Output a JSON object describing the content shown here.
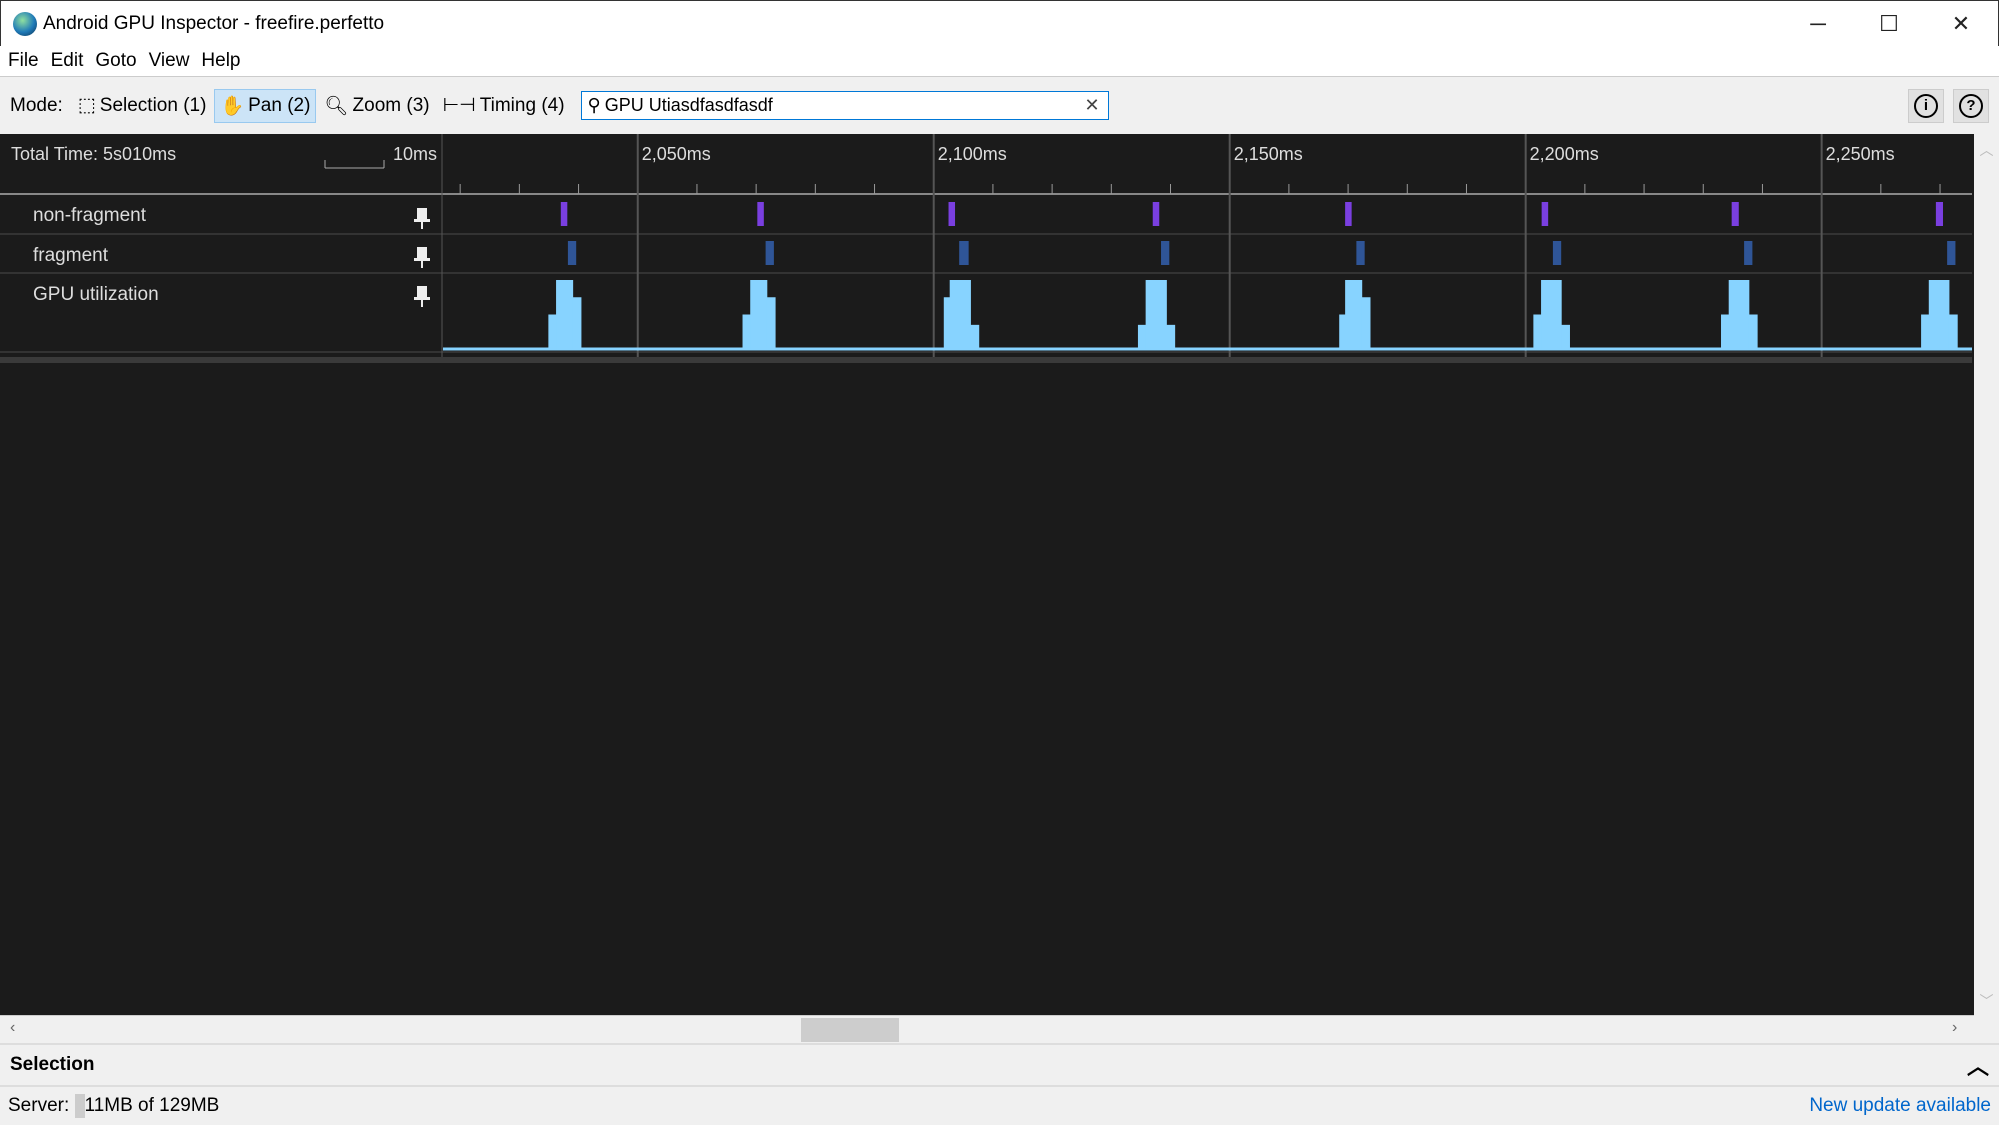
{
  "window": {
    "title": "Android GPU Inspector - freefire.perfetto",
    "minimize": "─",
    "maximize": "☐",
    "close": "✕"
  },
  "menu": [
    "File",
    "Edit",
    "Goto",
    "View",
    "Help"
  ],
  "toolbar": {
    "mode_label": "Mode:",
    "modes": [
      {
        "label": "Selection (1)",
        "icon": "selection-icon",
        "active": false
      },
      {
        "label": "Pan (2)",
        "icon": "hand-icon",
        "active": true
      },
      {
        "label": "Zoom (3)",
        "icon": "zoom-icon",
        "active": false
      },
      {
        "label": "Timing (4)",
        "icon": "timing-icon",
        "active": false
      }
    ],
    "search_value": "GPU Utiasdfasdfasdf",
    "info_icon": "info-icon",
    "help_icon": "help-icon"
  },
  "timeline": {
    "total_time": "Total Time: 5s010ms",
    "scale_label": "10ms",
    "visible_range_ms": [
      2017.1,
      2275.4
    ],
    "major_ticks": [
      {
        "ms": 2050,
        "label": "2,050ms"
      },
      {
        "ms": 2100,
        "label": "2,100ms"
      },
      {
        "ms": 2150,
        "label": "2,150ms"
      },
      {
        "ms": 2200,
        "label": "2,200ms"
      },
      {
        "ms": 2250,
        "label": "2,250ms"
      }
    ],
    "minor_tick_interval_ms": 10,
    "tracks": [
      {
        "label": "non-fragment",
        "color": "#7a3fe0",
        "events_ms": [
          [
            2037.0,
            1.1
          ],
          [
            2070.2,
            1.1
          ],
          [
            2102.5,
            1.1
          ],
          [
            2137.0,
            1.1
          ],
          [
            2169.5,
            1.1
          ],
          [
            2202.7,
            1.1
          ],
          [
            2234.8,
            1.2
          ],
          [
            2269.3,
            1.2
          ]
        ]
      },
      {
        "label": "fragment",
        "color": "#2f5597",
        "events_ms": [
          [
            2038.2,
            1.4
          ],
          [
            2071.6,
            1.4
          ],
          [
            2104.3,
            1.6
          ],
          [
            2138.4,
            1.4
          ],
          [
            2171.4,
            1.4
          ],
          [
            2204.6,
            1.4
          ],
          [
            2236.9,
            1.4
          ],
          [
            2271.2,
            1.4
          ]
        ]
      },
      {
        "label": "GPU utilization",
        "color": "#87d3ff",
        "pulses": [
          {
            "start_ms": 2034.9,
            "steps": [
              [
                1.3,
                0.5
              ],
              [
                2.8,
                1.0
              ],
              [
                1.4,
                0.75
              ]
            ]
          },
          {
            "start_ms": 2067.7,
            "steps": [
              [
                1.3,
                0.5
              ],
              [
                2.8,
                1.0
              ],
              [
                1.4,
                0.75
              ]
            ]
          },
          {
            "start_ms": 2101.7,
            "steps": [
              [
                1.0,
                0.75
              ],
              [
                3.5,
                1.0
              ],
              [
                1.4,
                0.35
              ]
            ]
          },
          {
            "start_ms": 2134.5,
            "steps": [
              [
                1.3,
                0.35
              ],
              [
                3.5,
                1.0
              ],
              [
                1.4,
                0.35
              ]
            ]
          },
          {
            "start_ms": 2168.5,
            "steps": [
              [
                1.0,
                0.5
              ],
              [
                2.8,
                1.0
              ],
              [
                1.4,
                0.75
              ]
            ]
          },
          {
            "start_ms": 2201.3,
            "steps": [
              [
                1.3,
                0.5
              ],
              [
                3.4,
                1.0
              ],
              [
                1.4,
                0.35
              ]
            ]
          },
          {
            "start_ms": 2233.0,
            "steps": [
              [
                1.3,
                0.5
              ],
              [
                3.4,
                1.0
              ],
              [
                1.4,
                0.5
              ]
            ]
          },
          {
            "start_ms": 2266.8,
            "steps": [
              [
                1.3,
                0.5
              ],
              [
                3.4,
                1.0
              ],
              [
                1.4,
                0.5
              ]
            ]
          }
        ]
      }
    ],
    "pin_icon": "pin-icon"
  },
  "selection_panel": {
    "title": "Selection",
    "toggle_icon": "chevron-up-icon"
  },
  "status": {
    "server_label": "Server:",
    "memory": "11MB of 129MB",
    "update_link": "New update available"
  }
}
